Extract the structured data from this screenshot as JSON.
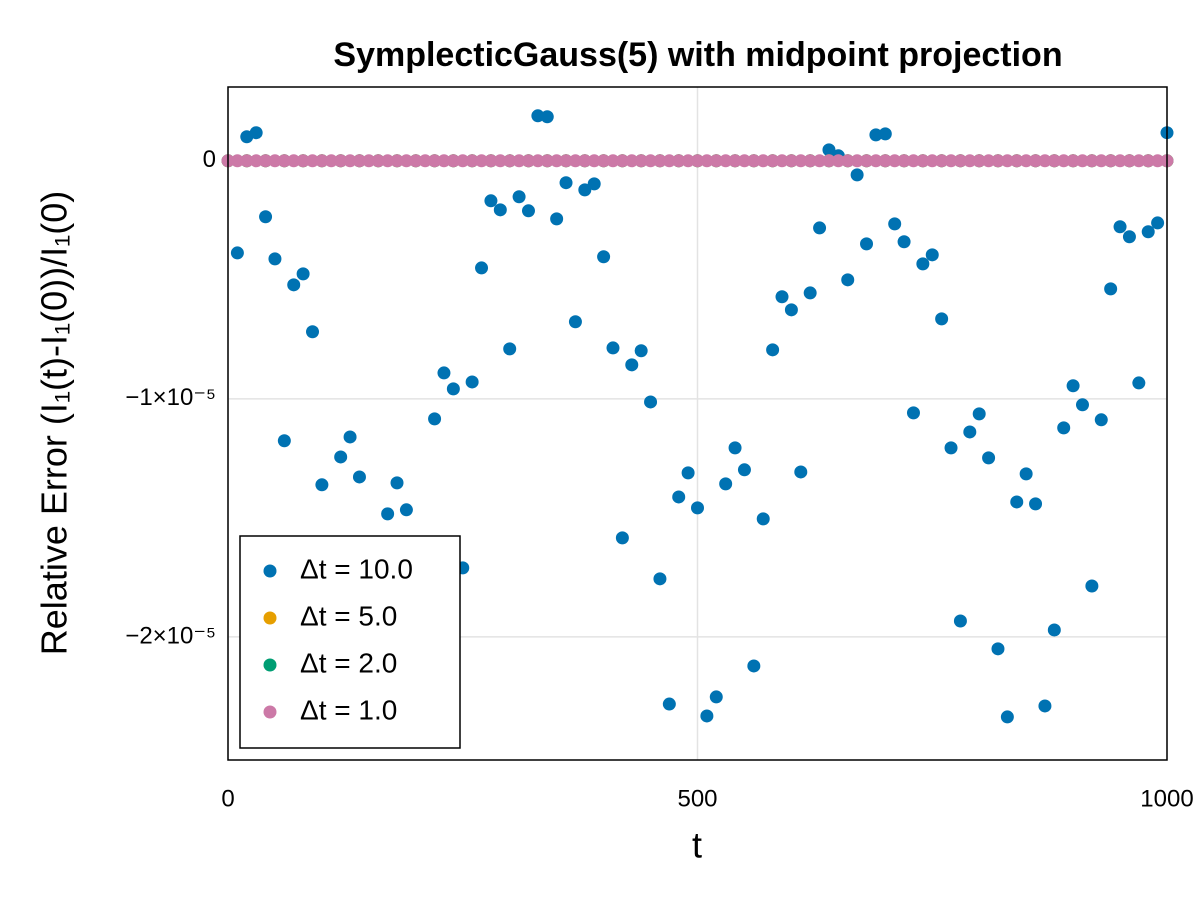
{
  "chart_data": {
    "type": "scatter",
    "title": "SymplecticGauss(5) with midpoint projection",
    "x_label": "t",
    "y_label": "Relative Error (I₁(t)-I₁(0))/I₁(0)",
    "xlim": [
      0,
      1000
    ],
    "xticks": [
      0,
      500,
      1000
    ],
    "ylim": [
      -2.517e-05,
      3.1e-06
    ],
    "yticks": [
      {
        "value": -2e-05,
        "label": "−2×10⁻⁵"
      },
      {
        "value": -1e-05,
        "label": "−1×10⁻⁵"
      },
      0
    ],
    "grid": true,
    "legend_position": "bottom left",
    "series": [
      {
        "name": "Δt = 10.0",
        "color": "#0072b2",
        "x": [
          10,
          20,
          30,
          40,
          50,
          60,
          70,
          80,
          90,
          100,
          120,
          130,
          140,
          170,
          180,
          190,
          220,
          230,
          240,
          250,
          260,
          270,
          280,
          290,
          300,
          310,
          320,
          330,
          340,
          350,
          360,
          370,
          380,
          390,
          400,
          410,
          420,
          430,
          440,
          450,
          460,
          470,
          480,
          490,
          500,
          510,
          520,
          530,
          540,
          550,
          560,
          570,
          580,
          590,
          600,
          610,
          620,
          630,
          640,
          650,
          660,
          670,
          680,
          690,
          700,
          710,
          720,
          730,
          740,
          750,
          760,
          770,
          780,
          790,
          800,
          810,
          820,
          830,
          840,
          850,
          860,
          870,
          880,
          890,
          900,
          910,
          920,
          930,
          940,
          950,
          960,
          970,
          980,
          990,
          1000
        ],
        "values": [
          -3.87e-06,
          1.01e-06,
          1.18e-06,
          -2.35e-06,
          -4.12e-06,
          -1.176e-05,
          -5.21e-06,
          -4.75e-06,
          -7.18e-06,
          -1.361e-05,
          -1.244e-05,
          -1.16e-05,
          -1.328e-05,
          -1.483e-05,
          -1.353e-05,
          -1.466e-05,
          -1.084e-05,
          -8.91e-06,
          -9.58e-06,
          -1.71e-05,
          -9.29e-06,
          -4.5e-06,
          -1.68e-06,
          -2.06e-06,
          -7.9e-06,
          -1.51e-06,
          -2.1e-06,
          1.89e-06,
          1.85e-06,
          -2.44e-06,
          -9.2e-07,
          -6.76e-06,
          -1.22e-06,
          -9.7e-07,
          -4.03e-06,
          -7.86e-06,
          -1.584e-05,
          -8.57e-06,
          -7.98e-06,
          -1.013e-05,
          -1.756e-05,
          -2.282e-05,
          -1.412e-05,
          -1.311e-05,
          -1.458e-05,
          -2.332e-05,
          -2.252e-05,
          -1.357e-05,
          -1.206e-05,
          -1.298e-05,
          -2.122e-05,
          -1.504e-05,
          -7.94e-06,
          -5.71e-06,
          -6.26e-06,
          -1.307e-05,
          -5.55e-06,
          -2.82e-06,
          4.6e-07,
          2.1e-07,
          -5e-06,
          -5.9e-07,
          -3.49e-06,
          1.09e-06,
          1.13e-06,
          -2.65e-06,
          -3.4e-06,
          -1.059e-05,
          -4.33e-06,
          -3.95e-06,
          -6.64e-06,
          -1.206e-05,
          -1.933e-05,
          -1.139e-05,
          -1.063e-05,
          -1.248e-05,
          -2.05e-05,
          -2.336e-05,
          -1.433e-05,
          -1.315e-05,
          -1.441e-05,
          -2.29e-05,
          -1.971e-05,
          -1.122e-05,
          -9.45e-06,
          -1.025e-05,
          -1.786e-05,
          -1.088e-05,
          -5.38e-06,
          -2.77e-06,
          -3.19e-06,
          -9.33e-06,
          -2.98e-06,
          -2.61e-06,
          1.18e-06
        ]
      },
      {
        "name": "Δt = 5.0",
        "color": "#e69f00",
        "x": [
          0,
          20,
          40,
          60,
          80,
          100,
          120,
          140,
          160,
          180,
          200,
          220,
          240,
          260,
          280,
          300,
          320,
          340,
          360,
          380,
          400,
          420,
          440,
          460,
          480,
          500,
          520,
          540,
          560,
          580,
          600,
          620,
          640,
          660,
          680,
          700,
          720,
          740,
          760,
          780,
          800,
          820,
          840,
          860,
          880,
          900,
          920,
          940,
          960,
          980,
          1000
        ],
        "values": [
          0,
          0,
          0,
          0,
          0,
          0,
          0,
          0,
          0,
          0,
          0,
          0,
          0,
          0,
          0,
          0,
          0,
          0,
          0,
          0,
          0,
          0,
          0,
          0,
          0,
          0,
          0,
          0,
          0,
          0,
          0,
          0,
          0,
          0,
          0,
          0,
          0,
          0,
          0,
          0,
          0,
          0,
          0,
          0,
          0,
          0,
          0,
          0,
          0,
          0,
          0
        ]
      },
      {
        "name": "Δt = 2.0",
        "color": "#009e73",
        "x": [
          0,
          20,
          40,
          60,
          80,
          100,
          120,
          140,
          160,
          180,
          200,
          220,
          240,
          260,
          280,
          300,
          320,
          340,
          360,
          380,
          400,
          420,
          440,
          460,
          480,
          500,
          520,
          540,
          560,
          580,
          600,
          620,
          640,
          660,
          680,
          700,
          720,
          740,
          760,
          780,
          800,
          820,
          840,
          860,
          880,
          900,
          920,
          940,
          960,
          980,
          1000
        ],
        "values": [
          0,
          0,
          0,
          0,
          0,
          0,
          0,
          0,
          0,
          0,
          0,
          0,
          0,
          0,
          0,
          0,
          0,
          0,
          0,
          0,
          0,
          0,
          0,
          0,
          0,
          0,
          0,
          0,
          0,
          0,
          0,
          0,
          0,
          0,
          0,
          0,
          0,
          0,
          0,
          0,
          0,
          0,
          0,
          0,
          0,
          0,
          0,
          0,
          0,
          0,
          0
        ]
      },
      {
        "name": "Δt = 1.0",
        "color": "#cc79a7",
        "x": [
          0,
          10,
          20,
          30,
          40,
          50,
          60,
          70,
          80,
          90,
          100,
          110,
          120,
          130,
          140,
          150,
          160,
          170,
          180,
          190,
          200,
          210,
          220,
          230,
          240,
          250,
          260,
          270,
          280,
          290,
          300,
          310,
          320,
          330,
          340,
          350,
          360,
          370,
          380,
          390,
          400,
          410,
          420,
          430,
          440,
          450,
          460,
          470,
          480,
          490,
          500,
          510,
          520,
          530,
          540,
          550,
          560,
          570,
          580,
          590,
          600,
          610,
          620,
          630,
          640,
          650,
          660,
          670,
          680,
          690,
          700,
          710,
          720,
          730,
          740,
          750,
          760,
          770,
          780,
          790,
          800,
          810,
          820,
          830,
          840,
          850,
          860,
          870,
          880,
          890,
          900,
          910,
          920,
          930,
          940,
          950,
          960,
          970,
          980,
          990,
          1000
        ],
        "values": [
          0,
          0,
          0,
          0,
          0,
          0,
          0,
          0,
          0,
          0,
          0,
          0,
          0,
          0,
          0,
          0,
          0,
          0,
          0,
          0,
          0,
          0,
          0,
          0,
          0,
          0,
          0,
          0,
          0,
          0,
          0,
          0,
          0,
          0,
          0,
          0,
          0,
          0,
          0,
          0,
          0,
          0,
          0,
          0,
          0,
          0,
          0,
          0,
          0,
          0,
          0,
          0,
          0,
          0,
          0,
          0,
          0,
          0,
          0,
          0,
          0,
          0,
          0,
          0,
          0,
          0,
          0,
          0,
          0,
          0,
          0,
          0,
          0,
          0,
          0,
          0,
          0,
          0,
          0,
          0,
          0,
          0,
          0,
          0,
          0,
          0,
          0,
          0,
          0,
          0,
          0,
          0,
          0,
          0,
          0,
          0,
          0,
          0,
          0,
          0,
          0
        ]
      }
    ]
  }
}
